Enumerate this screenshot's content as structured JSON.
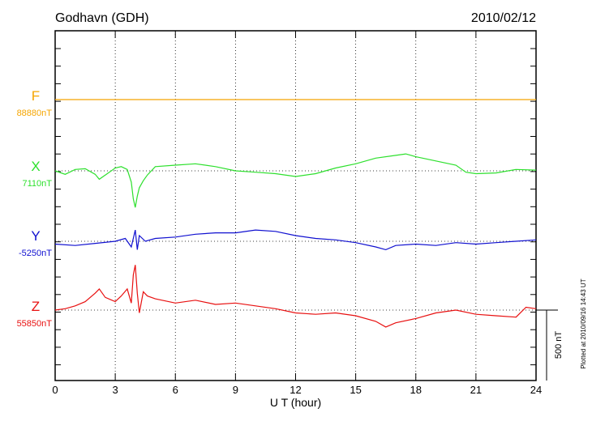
{
  "header": {
    "station": "Godhavn (GDH)",
    "date": "2010/02/12"
  },
  "footer_note": "Plotted at 2010/09/16 14:43 UT",
  "chart_data": {
    "type": "line",
    "xlabel": "U T (hour)",
    "xlim": [
      0,
      24
    ],
    "x_ticks": [
      0,
      3,
      6,
      9,
      12,
      15,
      18,
      21,
      24
    ],
    "x_tick_labels": [
      "0",
      "3",
      "6",
      "9",
      "12",
      "15",
      "18",
      "21",
      "24"
    ],
    "scale_bar_label": "500 nT",
    "grid": true,
    "series": [
      {
        "name": "F",
        "baseline_label": "88880nT",
        "color": "#f5a500",
        "x": [
          0,
          1,
          2,
          3,
          4,
          5,
          6,
          7,
          8,
          9,
          10,
          11,
          12,
          13,
          14,
          15,
          16,
          17,
          18,
          19,
          20,
          21,
          22,
          23,
          24
        ],
        "values": [
          0,
          0,
          0,
          0,
          0,
          0,
          0,
          0,
          0,
          0,
          0,
          0,
          0,
          0,
          0,
          0,
          0,
          0,
          0,
          0,
          0,
          0,
          0,
          0,
          0
        ]
      },
      {
        "name": "X",
        "baseline_label": "7110nT",
        "color": "#2de02d",
        "x": [
          0,
          0.5,
          1,
          1.5,
          2,
          2.2,
          2.5,
          3,
          3.3,
          3.6,
          3.8,
          3.9,
          4.0,
          4.1,
          4.2,
          4.4,
          4.6,
          5,
          6,
          7,
          8,
          9,
          10,
          11,
          12,
          13,
          14,
          15,
          16,
          17,
          17.5,
          18,
          19,
          20,
          20.5,
          21,
          22,
          23,
          24
        ],
        "values": [
          0,
          -25,
          10,
          15,
          -25,
          -60,
          -30,
          20,
          30,
          10,
          -80,
          -200,
          -260,
          -180,
          -120,
          -70,
          -30,
          30,
          40,
          50,
          30,
          0,
          -10,
          -20,
          -40,
          -20,
          20,
          50,
          90,
          110,
          120,
          100,
          70,
          40,
          -10,
          -20,
          -15,
          10,
          5
        ]
      },
      {
        "name": "Y",
        "baseline_label": "-5250nT",
        "color": "#1010d0",
        "x": [
          0,
          1,
          2,
          3,
          3.5,
          3.8,
          4.0,
          4.1,
          4.2,
          4.5,
          5,
          6,
          7,
          8,
          9,
          10,
          11,
          12,
          13,
          14,
          15,
          16,
          16.5,
          17,
          18,
          19,
          20,
          21,
          22,
          23,
          24
        ],
        "values": [
          -20,
          -30,
          -15,
          0,
          20,
          -40,
          80,
          -60,
          40,
          0,
          20,
          30,
          50,
          60,
          60,
          80,
          70,
          40,
          20,
          10,
          -10,
          -40,
          -60,
          -30,
          -20,
          -30,
          -10,
          -20,
          -10,
          0,
          10
        ]
      },
      {
        "name": "Z",
        "baseline_label": "55850nT",
        "color": "#e81010",
        "x": [
          0,
          0.5,
          1,
          1.5,
          2,
          2.2,
          2.5,
          3,
          3.3,
          3.6,
          3.8,
          3.9,
          4.0,
          4.1,
          4.2,
          4.4,
          4.6,
          5,
          6,
          7,
          8,
          9,
          10,
          11,
          12,
          13,
          14,
          15,
          16,
          16.5,
          17,
          18,
          19,
          20,
          21,
          22,
          23,
          23.5,
          24
        ],
        "values": [
          0,
          10,
          30,
          60,
          120,
          150,
          90,
          60,
          100,
          150,
          50,
          250,
          320,
          120,
          -20,
          130,
          100,
          80,
          50,
          70,
          40,
          50,
          30,
          10,
          -20,
          -30,
          -20,
          -40,
          -80,
          -120,
          -90,
          -60,
          -20,
          0,
          -30,
          -40,
          -50,
          20,
          10
        ]
      }
    ]
  }
}
